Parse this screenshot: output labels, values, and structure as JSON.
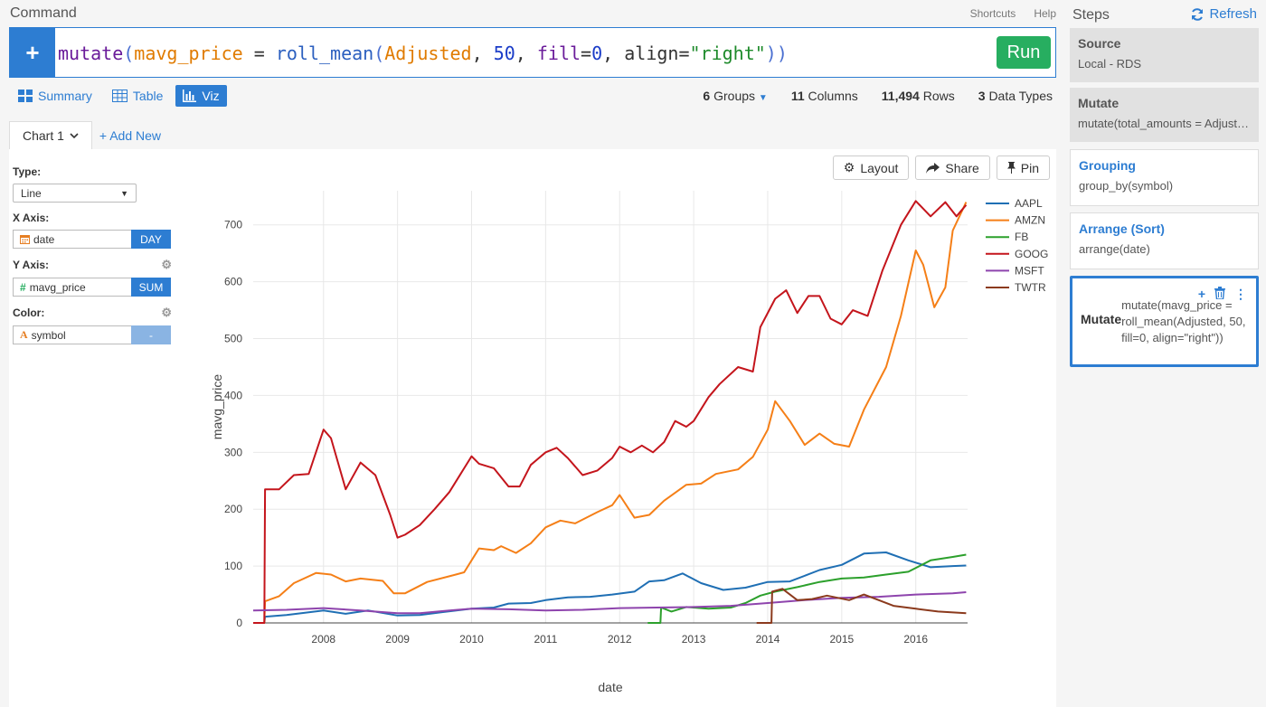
{
  "header": {
    "title": "Command",
    "shortcuts": "Shortcuts",
    "help": "Help"
  },
  "command": {
    "tokens": [
      {
        "text": "mutate",
        "cls": "c-kw"
      },
      {
        "text": "(",
        "cls": "c-paren"
      },
      {
        "text": "mavg_price",
        "cls": "c-var"
      },
      {
        "text": " = ",
        "cls": "c-op"
      },
      {
        "text": "roll_mean",
        "cls": "c-fn"
      },
      {
        "text": "(",
        "cls": "c-paren"
      },
      {
        "text": "Adjusted",
        "cls": "c-var"
      },
      {
        "text": ", ",
        "cls": "c-op"
      },
      {
        "text": "50",
        "cls": "c-num"
      },
      {
        "text": ", ",
        "cls": "c-op"
      },
      {
        "text": "fill",
        "cls": "c-kw"
      },
      {
        "text": "=",
        "cls": "c-op"
      },
      {
        "text": "0",
        "cls": "c-num"
      },
      {
        "text": ", ",
        "cls": "c-op"
      },
      {
        "text": "align",
        "cls": "c-op"
      },
      {
        "text": "=",
        "cls": "c-op"
      },
      {
        "text": "\"right\"",
        "cls": "c-str"
      },
      {
        "text": "))",
        "cls": "c-paren"
      }
    ],
    "run_label": "Run",
    "plus_label": "+"
  },
  "views": {
    "summary": "Summary",
    "table": "Table",
    "viz": "Viz"
  },
  "stats": {
    "groups_num": "6",
    "groups_label": "Groups",
    "columns_num": "11",
    "columns_label": "Columns",
    "rows_num": "11,494",
    "rows_label": "Rows",
    "types_num": "3",
    "types_label": "Data Types"
  },
  "chart_tabs": {
    "current": "Chart 1",
    "add_new": "+ Add New"
  },
  "config": {
    "type_label": "Type:",
    "type_value": "Line",
    "x_label": "X Axis:",
    "x_field": "date",
    "x_agg": "DAY",
    "y_label": "Y Axis:",
    "y_field": "mavg_price",
    "y_agg": "SUM",
    "color_label": "Color:",
    "color_field": "symbol",
    "color_agg": "-"
  },
  "chart_buttons": {
    "layout": "Layout",
    "share": "Share",
    "pin": "Pin"
  },
  "steps": {
    "title": "Steps",
    "refresh": "Refresh",
    "items": [
      {
        "title": "Source",
        "body": "Local - RDS"
      },
      {
        "title": "Mutate",
        "body": "mutate(total_amounts = Adjusted * Volume)"
      },
      {
        "title": "Grouping",
        "body": "group_by(symbol)"
      },
      {
        "title": "Arrange (Sort)",
        "body": "arrange(date)"
      },
      {
        "title": "Mutate",
        "body": "mutate(mavg_price = roll_mean(Adjusted, 50, fill=0, align=\"right\"))"
      }
    ]
  },
  "chart_data": {
    "type": "line",
    "xlabel": "date",
    "ylabel": "mavg_price",
    "xlim": [
      2007.05,
      2016.7
    ],
    "ylim": [
      0,
      760
    ],
    "xticks": [
      "2008",
      "2009",
      "2010",
      "2011",
      "2012",
      "2013",
      "2014",
      "2015",
      "2016"
    ],
    "yticks": [
      "0",
      "100",
      "200",
      "300",
      "400",
      "500",
      "600",
      "700"
    ],
    "grid": true,
    "legend": "top-right",
    "series": [
      {
        "name": "AAPL",
        "color": "#1f6fb4",
        "points": [
          [
            2007.05,
            0
          ],
          [
            2007.2,
            0
          ],
          [
            2007.21,
            11
          ],
          [
            2007.5,
            14
          ],
          [
            2008,
            22
          ],
          [
            2008.3,
            16
          ],
          [
            2008.6,
            22
          ],
          [
            2009,
            13
          ],
          [
            2009.3,
            14
          ],
          [
            2009.6,
            19
          ],
          [
            2010,
            25
          ],
          [
            2010.3,
            27
          ],
          [
            2010.5,
            34
          ],
          [
            2010.8,
            35
          ],
          [
            2011,
            40
          ],
          [
            2011.3,
            45
          ],
          [
            2011.6,
            46
          ],
          [
            2011.9,
            50
          ],
          [
            2012.2,
            55
          ],
          [
            2012.4,
            73
          ],
          [
            2012.6,
            75
          ],
          [
            2012.85,
            87
          ],
          [
            2013.1,
            70
          ],
          [
            2013.4,
            58
          ],
          [
            2013.7,
            62
          ],
          [
            2014,
            72
          ],
          [
            2014.3,
            73
          ],
          [
            2014.7,
            93
          ],
          [
            2015,
            102
          ],
          [
            2015.3,
            122
          ],
          [
            2015.6,
            124
          ],
          [
            2015.9,
            110
          ],
          [
            2016.2,
            98
          ],
          [
            2016.5,
            100
          ],
          [
            2016.68,
            101
          ]
        ]
      },
      {
        "name": "AMZN",
        "color": "#f57f17",
        "points": [
          [
            2007.05,
            0
          ],
          [
            2007.2,
            0
          ],
          [
            2007.21,
            38
          ],
          [
            2007.4,
            47
          ],
          [
            2007.6,
            70
          ],
          [
            2007.9,
            88
          ],
          [
            2008.1,
            85
          ],
          [
            2008.3,
            73
          ],
          [
            2008.5,
            78
          ],
          [
            2008.8,
            74
          ],
          [
            2008.95,
            52
          ],
          [
            2009.1,
            52
          ],
          [
            2009.4,
            72
          ],
          [
            2009.7,
            82
          ],
          [
            2009.9,
            89
          ],
          [
            2010,
            110
          ],
          [
            2010.1,
            131
          ],
          [
            2010.3,
            128
          ],
          [
            2010.4,
            135
          ],
          [
            2010.6,
            123
          ],
          [
            2010.8,
            140
          ],
          [
            2011,
            168
          ],
          [
            2011.2,
            180
          ],
          [
            2011.4,
            175
          ],
          [
            2011.7,
            195
          ],
          [
            2011.9,
            207
          ],
          [
            2012,
            225
          ],
          [
            2012.2,
            185
          ],
          [
            2012.4,
            190
          ],
          [
            2012.6,
            215
          ],
          [
            2012.9,
            243
          ],
          [
            2013.1,
            245
          ],
          [
            2013.3,
            262
          ],
          [
            2013.6,
            270
          ],
          [
            2013.8,
            292
          ],
          [
            2014,
            340
          ],
          [
            2014.1,
            390
          ],
          [
            2014.3,
            355
          ],
          [
            2014.5,
            313
          ],
          [
            2014.7,
            333
          ],
          [
            2014.9,
            315
          ],
          [
            2015.1,
            310
          ],
          [
            2015.3,
            375
          ],
          [
            2015.6,
            450
          ],
          [
            2015.8,
            540
          ],
          [
            2016,
            655
          ],
          [
            2016.1,
            630
          ],
          [
            2016.25,
            555
          ],
          [
            2016.4,
            590
          ],
          [
            2016.5,
            690
          ],
          [
            2016.68,
            740
          ]
        ]
      },
      {
        "name": "FB",
        "color": "#2ca02c",
        "points": [
          [
            2012.38,
            0
          ],
          [
            2012.55,
            0
          ],
          [
            2012.56,
            27
          ],
          [
            2012.7,
            20
          ],
          [
            2012.9,
            28
          ],
          [
            2013.2,
            25
          ],
          [
            2013.5,
            27
          ],
          [
            2013.7,
            35
          ],
          [
            2013.9,
            48
          ],
          [
            2014.1,
            55
          ],
          [
            2014.4,
            63
          ],
          [
            2014.7,
            72
          ],
          [
            2015,
            78
          ],
          [
            2015.3,
            80
          ],
          [
            2015.6,
            85
          ],
          [
            2015.9,
            90
          ],
          [
            2016.2,
            110
          ],
          [
            2016.5,
            116
          ],
          [
            2016.68,
            120
          ]
        ]
      },
      {
        "name": "GOOG",
        "color": "#c4151c",
        "points": [
          [
            2007.05,
            0
          ],
          [
            2007.2,
            0
          ],
          [
            2007.21,
            235
          ],
          [
            2007.4,
            235
          ],
          [
            2007.6,
            260
          ],
          [
            2007.8,
            262
          ],
          [
            2008,
            340
          ],
          [
            2008.1,
            325
          ],
          [
            2008.3,
            235
          ],
          [
            2008.5,
            282
          ],
          [
            2008.7,
            260
          ],
          [
            2008.9,
            190
          ],
          [
            2009,
            150
          ],
          [
            2009.1,
            155
          ],
          [
            2009.3,
            172
          ],
          [
            2009.5,
            200
          ],
          [
            2009.7,
            230
          ],
          [
            2009.9,
            272
          ],
          [
            2010,
            293
          ],
          [
            2010.1,
            280
          ],
          [
            2010.3,
            272
          ],
          [
            2010.5,
            240
          ],
          [
            2010.65,
            240
          ],
          [
            2010.8,
            278
          ],
          [
            2011,
            300
          ],
          [
            2011.15,
            308
          ],
          [
            2011.3,
            290
          ],
          [
            2011.5,
            260
          ],
          [
            2011.7,
            268
          ],
          [
            2011.9,
            290
          ],
          [
            2012,
            310
          ],
          [
            2012.15,
            300
          ],
          [
            2012.3,
            312
          ],
          [
            2012.45,
            300
          ],
          [
            2012.6,
            318
          ],
          [
            2012.75,
            355
          ],
          [
            2012.9,
            345
          ],
          [
            2013,
            355
          ],
          [
            2013.2,
            397
          ],
          [
            2013.35,
            420
          ],
          [
            2013.6,
            450
          ],
          [
            2013.8,
            442
          ],
          [
            2013.9,
            520
          ],
          [
            2014.1,
            570
          ],
          [
            2014.25,
            585
          ],
          [
            2014.4,
            545
          ],
          [
            2014.55,
            575
          ],
          [
            2014.7,
            575
          ],
          [
            2014.85,
            535
          ],
          [
            2015,
            525
          ],
          [
            2015.15,
            550
          ],
          [
            2015.35,
            540
          ],
          [
            2015.55,
            620
          ],
          [
            2015.8,
            700
          ],
          [
            2016,
            742
          ],
          [
            2016.2,
            715
          ],
          [
            2016.4,
            740
          ],
          [
            2016.55,
            715
          ],
          [
            2016.68,
            735
          ]
        ]
      },
      {
        "name": "MSFT",
        "color": "#8e44ad",
        "points": [
          [
            2007.05,
            22
          ],
          [
            2007.5,
            23
          ],
          [
            2008,
            26
          ],
          [
            2008.5,
            22
          ],
          [
            2009,
            17
          ],
          [
            2009.3,
            17
          ],
          [
            2009.7,
            22
          ],
          [
            2010,
            25
          ],
          [
            2010.5,
            24
          ],
          [
            2011,
            22
          ],
          [
            2011.5,
            23
          ],
          [
            2012,
            26
          ],
          [
            2012.5,
            27
          ],
          [
            2013,
            28
          ],
          [
            2013.5,
            30
          ],
          [
            2014,
            35
          ],
          [
            2014.5,
            40
          ],
          [
            2015,
            44
          ],
          [
            2015.5,
            46
          ],
          [
            2016,
            50
          ],
          [
            2016.5,
            52
          ],
          [
            2016.68,
            54
          ]
        ]
      },
      {
        "name": "TWTR",
        "color": "#8b3a1d",
        "points": [
          [
            2013.85,
            0
          ],
          [
            2014.05,
            0
          ],
          [
            2014.06,
            55
          ],
          [
            2014.2,
            60
          ],
          [
            2014.4,
            40
          ],
          [
            2014.6,
            42
          ],
          [
            2014.8,
            48
          ],
          [
            2015.1,
            40
          ],
          [
            2015.3,
            50
          ],
          [
            2015.5,
            40
          ],
          [
            2015.7,
            30
          ],
          [
            2016,
            25
          ],
          [
            2016.3,
            20
          ],
          [
            2016.68,
            17
          ]
        ]
      }
    ]
  }
}
